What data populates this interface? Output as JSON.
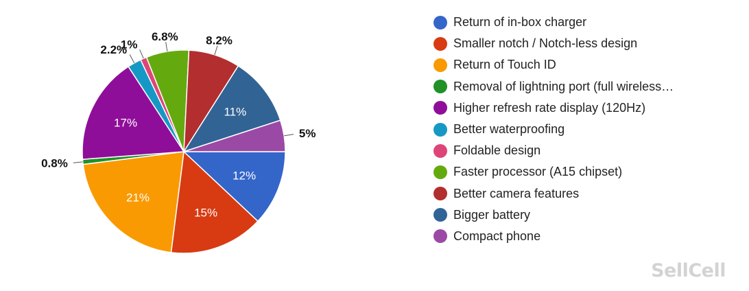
{
  "chart_data": {
    "type": "pie",
    "slices": [
      {
        "label": "Return of in-box charger",
        "value": 12,
        "display": "12%",
        "color": "#3465c9"
      },
      {
        "label": "Smaller notch / Notch-less design",
        "value": 15,
        "display": "15%",
        "color": "#d83b12"
      },
      {
        "label": "Return of Touch ID",
        "value": 21,
        "display": "21%",
        "color": "#f99a03"
      },
      {
        "label": "Removal of lightning port (full wireless…",
        "value": 0.8,
        "display": "0.8%",
        "color": "#1f9127"
      },
      {
        "label": "Higher refresh rate display (120Hz)",
        "value": 17,
        "display": "17%",
        "color": "#8f0e99"
      },
      {
        "label": "Better waterproofing",
        "value": 2.2,
        "display": "2.2%",
        "color": "#1599c4"
      },
      {
        "label": "Foldable design",
        "value": 1,
        "display": "1%",
        "color": "#dd4578"
      },
      {
        "label": "Faster processor (A15 chipset)",
        "value": 6.8,
        "display": "6.8%",
        "color": "#64aa0f"
      },
      {
        "label": "Better camera features",
        "value": 8.2,
        "display": "8.2%",
        "color": "#b32e2f"
      },
      {
        "label": "Bigger battery",
        "value": 11,
        "display": "11%",
        "color": "#326395"
      },
      {
        "label": "Compact phone",
        "value": 5,
        "display": "5%",
        "color": "#9a4aa5"
      }
    ],
    "start_angle_deg": 0,
    "direction": "clockwise",
    "legend_position": "right"
  },
  "watermark": "SellCell"
}
